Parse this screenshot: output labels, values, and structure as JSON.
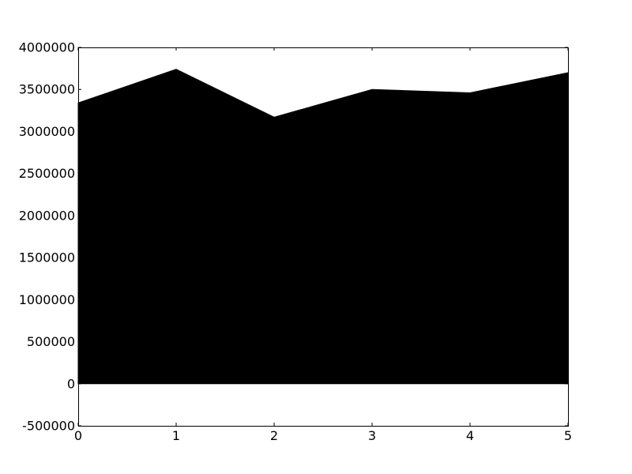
{
  "chart_data": {
    "type": "area",
    "title": "",
    "xlabel": "",
    "ylabel": "",
    "x": [
      0,
      1,
      2,
      3,
      4,
      5
    ],
    "series": [
      {
        "values": [
          3340000,
          3740000,
          3170000,
          3500000,
          3460000,
          3700000
        ]
      }
    ],
    "xlim": [
      0,
      5
    ],
    "ylim": [
      -500000,
      4000000
    ],
    "x_ticks": [
      "0",
      "1",
      "2",
      "3",
      "4",
      "5"
    ],
    "y_ticks": [
      "-500000",
      "0",
      "500000",
      "1000000",
      "1500000",
      "2000000",
      "2500000",
      "3000000",
      "3500000",
      "4000000"
    ],
    "grid": false,
    "legend": "none",
    "colors": {
      "fill": "#000000",
      "axes": "#000000",
      "background": "#ffffff"
    }
  }
}
